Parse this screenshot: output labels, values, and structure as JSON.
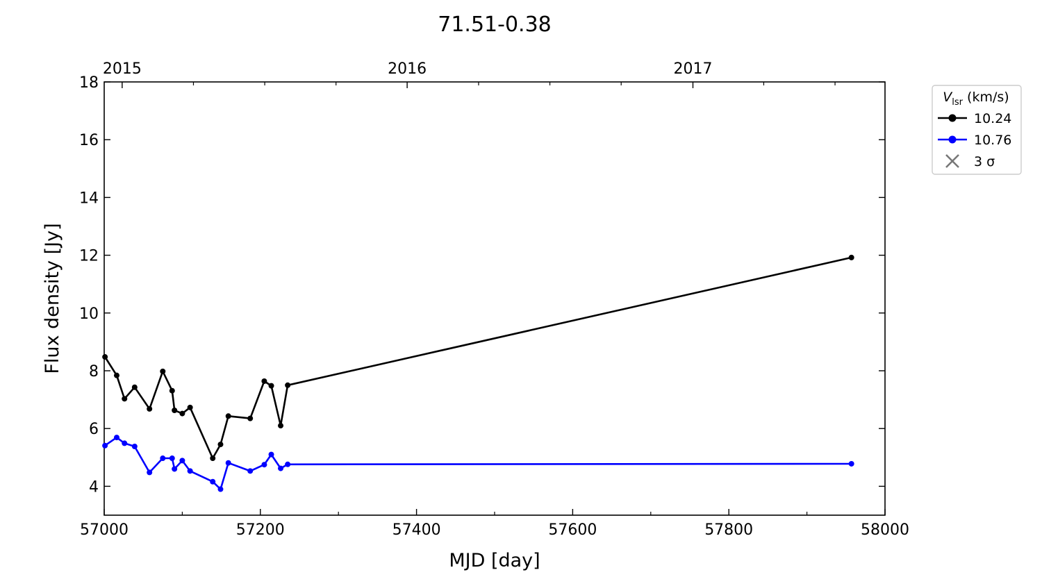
{
  "chart_data": {
    "type": "line",
    "title": "71.51-0.38",
    "xlabel": "MJD [day]",
    "ylabel": "Flux density [Jy]",
    "xlim": [
      57000,
      58000
    ],
    "ylim": [
      3,
      18
    ],
    "x_ticks": [
      "57000",
      "57200",
      "57400",
      "57600",
      "57800",
      "58000"
    ],
    "y_ticks": [
      "4",
      "6",
      "8",
      "10",
      "12",
      "14",
      "16",
      "18"
    ],
    "top_axis": {
      "ticks": [
        {
          "label": "2015",
          "mjd": 57023
        },
        {
          "label": "2016",
          "mjd": 57388
        },
        {
          "label": "2017",
          "mjd": 57754
        }
      ]
    },
    "grid": false,
    "legend": {
      "placement": "outside-right-top",
      "title_symbol": "V",
      "title_subscript": "lsr",
      "title_unit": " (km/s)",
      "entries": [
        {
          "label": "10.24",
          "marker": "circle-line",
          "color": "#000000"
        },
        {
          "label": "10.76",
          "marker": "circle-line",
          "color": "#0000ff"
        },
        {
          "label": "3 σ",
          "marker": "x",
          "color": "#777777"
        }
      ]
    },
    "series": [
      {
        "name": "10.24",
        "color": "#000000",
        "x": [
          57001,
          57016,
          57026,
          57039,
          57058,
          57075,
          57087,
          57090,
          57100,
          57110,
          57139,
          57149,
          57159,
          57187,
          57205,
          57214,
          57226,
          57235,
          57957
        ],
        "y": [
          8.48,
          7.84,
          7.03,
          7.43,
          6.68,
          7.98,
          7.31,
          6.63,
          6.52,
          6.73,
          4.97,
          5.45,
          6.43,
          6.35,
          7.64,
          7.48,
          6.1,
          7.5,
          11.92
        ]
      },
      {
        "name": "10.76",
        "color": "#0000ff",
        "x": [
          57001,
          57016,
          57026,
          57039,
          57058,
          57075,
          57087,
          57090,
          57100,
          57110,
          57139,
          57149,
          57159,
          57187,
          57205,
          57214,
          57226,
          57235,
          57957
        ],
        "y": [
          5.41,
          5.69,
          5.49,
          5.38,
          4.48,
          4.97,
          4.97,
          4.6,
          4.89,
          4.53,
          4.16,
          3.9,
          4.81,
          4.53,
          4.75,
          5.1,
          4.62,
          4.76,
          4.78
        ]
      }
    ]
  }
}
